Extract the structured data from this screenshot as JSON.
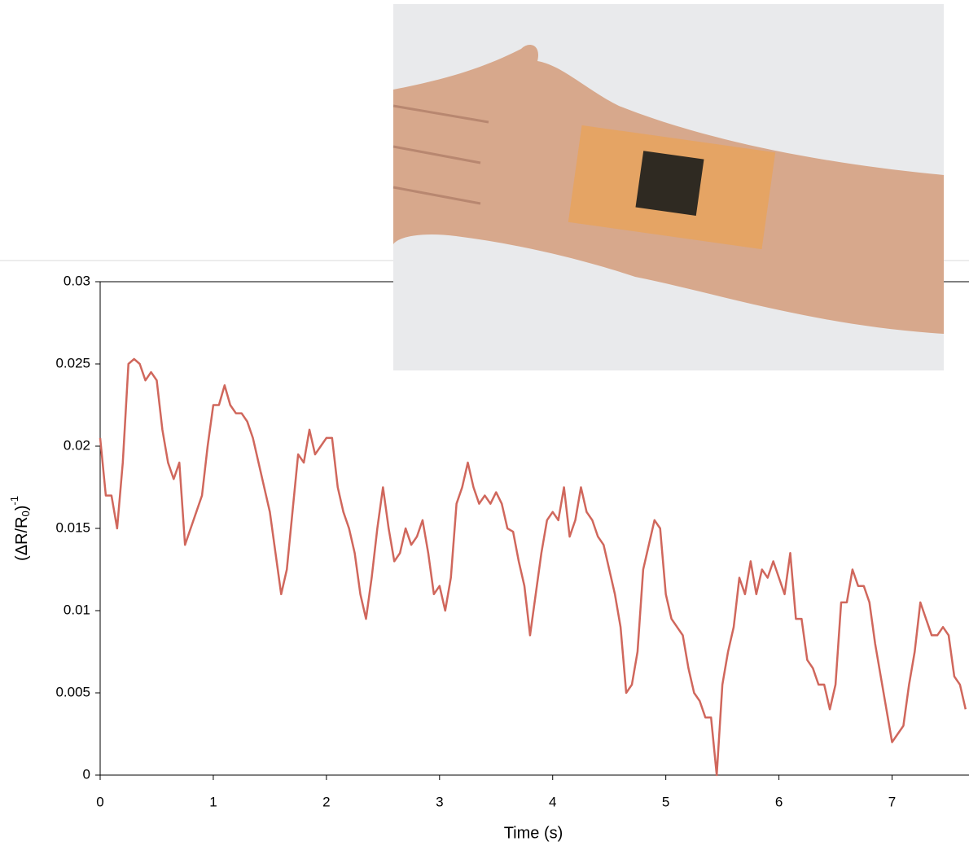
{
  "chart_data": {
    "type": "line",
    "xlabel": "Time (s)",
    "ylabel_parts": [
      "(ΔR/R",
      "0",
      ")",
      "-1"
    ],
    "xlim": [
      0,
      7.68
    ],
    "xticks": [
      0,
      1,
      2,
      3,
      4,
      5,
      6,
      7
    ],
    "ylim": [
      0,
      0.03
    ],
    "yticks": [
      0,
      0.005,
      0.01,
      0.015,
      0.02,
      0.025,
      0.03
    ],
    "grid": false,
    "color": "#d0675c",
    "x": [
      0,
      0.05,
      0.1,
      0.15,
      0.2,
      0.25,
      0.3,
      0.35,
      0.4,
      0.45,
      0.5,
      0.55,
      0.6,
      0.65,
      0.7,
      0.75,
      0.8,
      0.85,
      0.9,
      0.95,
      1,
      1.05,
      1.1,
      1.15,
      1.2,
      1.25,
      1.3,
      1.35,
      1.4,
      1.45,
      1.5,
      1.55,
      1.6,
      1.65,
      1.7,
      1.75,
      1.8,
      1.85,
      1.9,
      1.95,
      2,
      2.05,
      2.1,
      2.15,
      2.2,
      2.25,
      2.3,
      2.35,
      2.4,
      2.45,
      2.5,
      2.55,
      2.6,
      2.65,
      2.7,
      2.75,
      2.8,
      2.85,
      2.9,
      2.95,
      3,
      3.05,
      3.1,
      3.15,
      3.2,
      3.25,
      3.3,
      3.35,
      3.4,
      3.45,
      3.5,
      3.55,
      3.6,
      3.65,
      3.7,
      3.75,
      3.8,
      3.85,
      3.9,
      3.95,
      4,
      4.05,
      4.1,
      4.15,
      4.2,
      4.25,
      4.3,
      4.35,
      4.4,
      4.45,
      4.5,
      4.55,
      4.6,
      4.65,
      4.7,
      4.75,
      4.8,
      4.85,
      4.9,
      4.95,
      5,
      5.05,
      5.1,
      5.15,
      5.2,
      5.25,
      5.3,
      5.35,
      5.4,
      5.45,
      5.5,
      5.55,
      5.6,
      5.65,
      5.7,
      5.75,
      5.8,
      5.85,
      5.9,
      5.95,
      6,
      6.05,
      6.1,
      6.15,
      6.2,
      6.25,
      6.3,
      6.35,
      6.4,
      6.45,
      6.5,
      6.55,
      6.6,
      6.65,
      6.7,
      6.75,
      6.8,
      6.85,
      6.9,
      6.95,
      7,
      7.05,
      7.1,
      7.15,
      7.2,
      7.25,
      7.3,
      7.35,
      7.4,
      7.45,
      7.5,
      7.55,
      7.6,
      7.65
    ],
    "values": [
      0.0205,
      0.017,
      0.017,
      0.015,
      0.019,
      0.025,
      0.0253,
      0.025,
      0.024,
      0.0245,
      0.024,
      0.021,
      0.019,
      0.018,
      0.019,
      0.014,
      0.015,
      0.016,
      0.017,
      0.02,
      0.0225,
      0.0225,
      0.0237,
      0.0225,
      0.022,
      0.022,
      0.0215,
      0.0205,
      0.019,
      0.0175,
      0.016,
      0.0135,
      0.011,
      0.0125,
      0.016,
      0.0195,
      0.019,
      0.021,
      0.0195,
      0.02,
      0.0205,
      0.0205,
      0.0175,
      0.016,
      0.015,
      0.0135,
      0.011,
      0.0095,
      0.012,
      0.015,
      0.0175,
      0.015,
      0.013,
      0.0135,
      0.015,
      0.014,
      0.0145,
      0.0155,
      0.0135,
      0.011,
      0.0115,
      0.01,
      0.012,
      0.0165,
      0.0175,
      0.019,
      0.0175,
      0.0165,
      0.017,
      0.0165,
      0.0172,
      0.0165,
      0.015,
      0.0148,
      0.013,
      0.0115,
      0.0085,
      0.011,
      0.0135,
      0.0155,
      0.016,
      0.0155,
      0.0175,
      0.0145,
      0.0155,
      0.0175,
      0.016,
      0.0155,
      0.0145,
      0.014,
      0.0125,
      0.011,
      0.009,
      0.005,
      0.0055,
      0.0075,
      0.0125,
      0.014,
      0.0155,
      0.015,
      0.011,
      0.0095,
      0.009,
      0.0085,
      0.0065,
      0.005,
      0.0045,
      0.0035,
      0.0035,
      0,
      0.0055,
      0.0075,
      0.009,
      0.012,
      0.011,
      0.013,
      0.011,
      0.0125,
      0.012,
      0.013,
      0.012,
      0.011,
      0.0135,
      0.0095,
      0.0095,
      0.007,
      0.0065,
      0.0055,
      0.0055,
      0.004,
      0.0055,
      0.0105,
      0.0105,
      0.0125,
      0.0115,
      0.0115,
      0.0105,
      0.008,
      0.006,
      0.004,
      0.002,
      0.0025,
      0.003,
      0.0055,
      0.0075,
      0.0105,
      0.0095,
      0.0085,
      0.0085,
      0.009,
      0.0085,
      0.006,
      0.0055,
      0.004
    ]
  }
}
